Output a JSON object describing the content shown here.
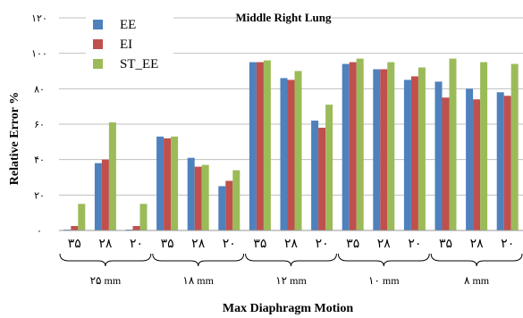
{
  "chart_data": {
    "type": "bar",
    "title": "Middle Right Lung",
    "xlabel": "Max Diaphragm Motion",
    "ylabel": "Relative Error %",
    "ylim": [
      0,
      120
    ],
    "yticks": [
      0,
      20,
      40,
      60,
      80,
      100,
      120
    ],
    "ytick_labels": [
      "۰",
      "۲۰",
      "۴۰",
      "۶۰",
      "۸۰",
      "۱۰۰",
      "۱۲۰"
    ],
    "grid": "horizontal",
    "legend": "top-left",
    "categories": [
      "۳۵",
      "۲۸",
      "۲۰",
      "۳۵",
      "۲۸",
      "۲۰",
      "۳۵",
      "۲۸",
      "۲۰",
      "۳۵",
      "۲۸",
      "۲۰",
      "۳۵",
      "۲۸",
      "۲۰"
    ],
    "groups": [
      {
        "label": "۲۵ mm",
        "size": 3
      },
      {
        "label": "۱۸ mm",
        "size": 3
      },
      {
        "label": "۱۲ mm",
        "size": 3
      },
      {
        "label": "۱۰ mm",
        "size": 3
      },
      {
        "label": "۸ mm",
        "size": 3
      }
    ],
    "series": [
      {
        "name": "EE",
        "color": "#4F81BD",
        "values": [
          0.5,
          38,
          0.5,
          53,
          41,
          25,
          95,
          86,
          62,
          94,
          91,
          85,
          84,
          80,
          78
        ]
      },
      {
        "name": "EI",
        "color": "#C0504D",
        "values": [
          2.5,
          40,
          2.5,
          52,
          36,
          28,
          95,
          85,
          58,
          95,
          91,
          87,
          75,
          74,
          76
        ]
      },
      {
        "name": "ST_EE",
        "color": "#9BBB59",
        "values": [
          15,
          61,
          15,
          53,
          37,
          34,
          96,
          90,
          71,
          97,
          95,
          92,
          97,
          95,
          94
        ]
      }
    ]
  }
}
